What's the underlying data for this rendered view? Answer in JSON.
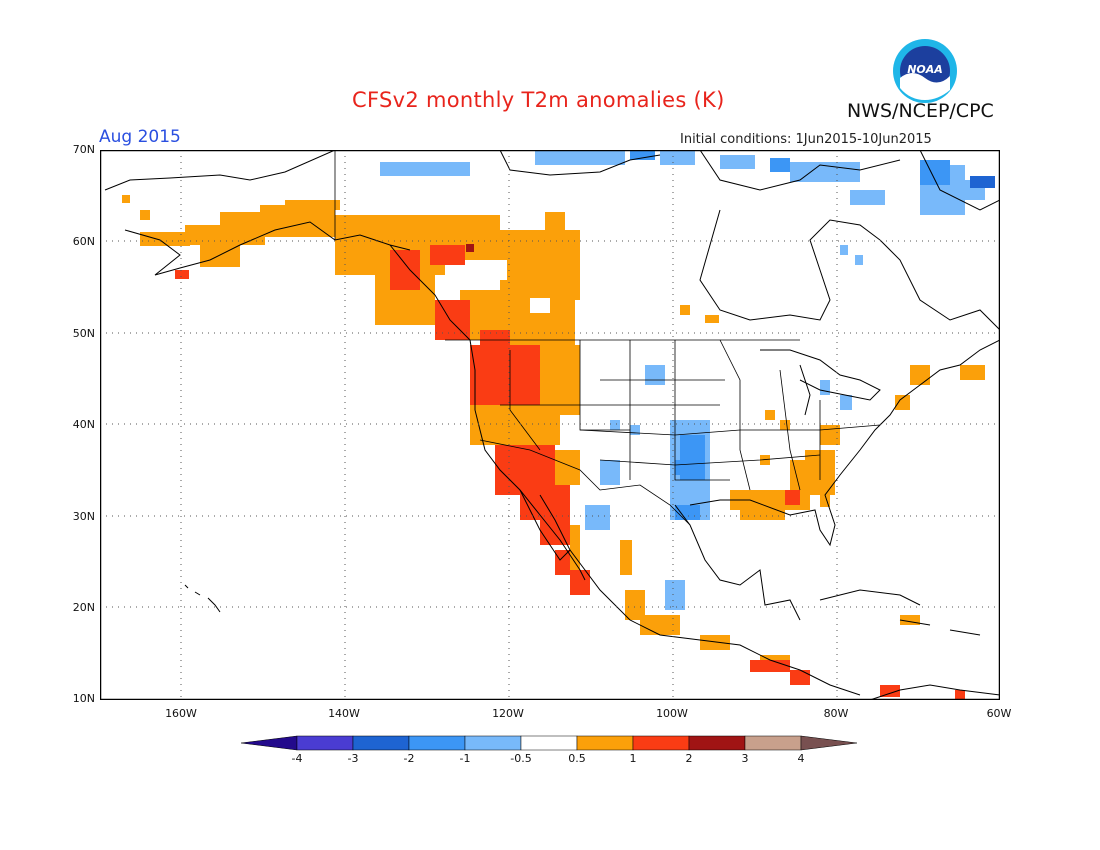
{
  "title": "CFSv2 monthly T2m anomalies (K)",
  "month": "Aug 2015",
  "initial_conditions": "Initial conditions: 1Jun2015-10Jun2015",
  "agency": "NWS/NCEP/CPC",
  "logo_text": "NOAA",
  "map": {
    "projection": "lat-lon",
    "lon_range": [
      -172,
      -60
    ],
    "lat_range": [
      10,
      70
    ],
    "lat_labels": [
      "70N",
      "60N",
      "50N",
      "40N",
      "30N",
      "20N",
      "10N"
    ],
    "lon_labels": [
      "160W",
      "140W",
      "120W",
      "100W",
      "80W",
      "60W"
    ],
    "grid": "dotted"
  },
  "colorbar": {
    "ticks": [
      "-4",
      "-3",
      "-2",
      "-1",
      "-0.5",
      "0.5",
      "1",
      "2",
      "3",
      "4"
    ],
    "colors": [
      "#230a8c",
      "#4a3cd2",
      "#1e64d2",
      "#3c96f5",
      "#78b9fa",
      "#ffffff",
      "#fba00a",
      "#fa3c14",
      "#a01414",
      "#c8a08c",
      "#785050"
    ]
  },
  "chart_data": {
    "type": "heatmap",
    "variable": "T2m anomaly (K)",
    "warm_regions_ge_0.5": [
      "Alaska south coast",
      "Yukon",
      "British Columbia",
      "Alberta",
      "US Pacific Northwest",
      "California",
      "Nevada",
      "Arizona",
      "Baja California",
      "Mexico Pacific coast",
      "US Southeast",
      "Central America"
    ],
    "strong_warm_regions_ge_1": [
      "Washington",
      "Oregon",
      "Idaho",
      "California",
      "Nevada",
      "Arizona",
      "Baja California",
      "Northern BC"
    ],
    "cool_regions_le_-0.5": [
      "Arctic Canada coast",
      "Kansas/Oklahoma",
      "Texas Panhandle",
      "New Mexico",
      "Chihuahua",
      "Baffin Island"
    ]
  }
}
